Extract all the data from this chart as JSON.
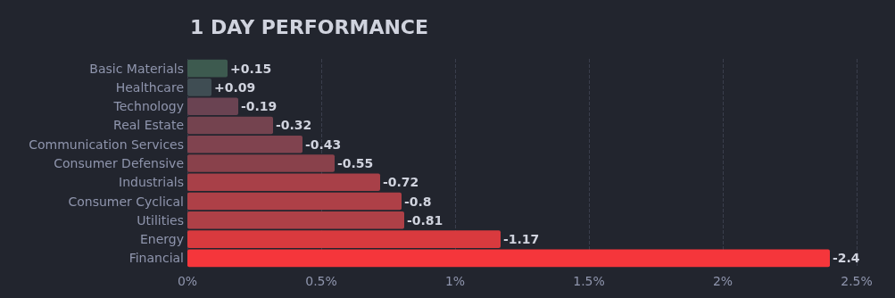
{
  "chart_data": {
    "type": "bar",
    "orientation": "horizontal",
    "title": "1 DAY PERFORMANCE",
    "categories": [
      "Basic Materials",
      "Healthcare",
      "Technology",
      "Real Estate",
      "Communication Services",
      "Consumer Defensive",
      "Industrials",
      "Consumer Cyclical",
      "Utilities",
      "Energy",
      "Financial"
    ],
    "values": [
      0.15,
      0.09,
      0.19,
      0.32,
      0.43,
      0.55,
      0.72,
      0.8,
      0.81,
      1.17,
      2.4
    ],
    "colors": [
      "#3d5a4f",
      "#3f4d53",
      "#6a4352",
      "#74434f",
      "#80434f",
      "#89414b",
      "#a84048",
      "#ae4047",
      "#ae4047",
      "#d93a3e",
      "#f5363b"
    ],
    "annotations": [
      {
        "text": "+0.15",
        "x": 0.15,
        "y": "Basic Materials"
      },
      {
        "text": "+0.09",
        "x": 0.09,
        "y": "Healthcare"
      },
      {
        "text": "-0.19",
        "x": 0.19,
        "y": "Technology"
      },
      {
        "text": "-0.32",
        "x": 0.32,
        "y": "Real Estate"
      },
      {
        "text": "-0.43",
        "x": 0.43,
        "y": "Communication Services"
      },
      {
        "text": "-0.55",
        "x": 0.55,
        "y": "Consumer Defensive"
      },
      {
        "text": "-0.72",
        "x": 0.72,
        "y": "Industrials"
      },
      {
        "text": "-0.8",
        "x": 0.8,
        "y": "Consumer Cyclical"
      },
      {
        "text": "-0.81",
        "x": 0.81,
        "y": "Utilities"
      },
      {
        "text": "-1.17",
        "x": 1.17,
        "y": "Energy"
      },
      {
        "text": "-2.4",
        "x": 2.4,
        "y": "Financial"
      }
    ],
    "xlim": [
      0,
      2.5
    ],
    "xticks": [
      {
        "value": 0,
        "label": "0%"
      },
      {
        "value": 0.5,
        "label": "0.5%"
      },
      {
        "value": 1,
        "label": "1%"
      },
      {
        "value": 1.5,
        "label": "1.5%"
      },
      {
        "value": 2,
        "label": "2%"
      },
      {
        "value": 2.5,
        "label": "2.5%"
      }
    ],
    "grid": "x"
  }
}
